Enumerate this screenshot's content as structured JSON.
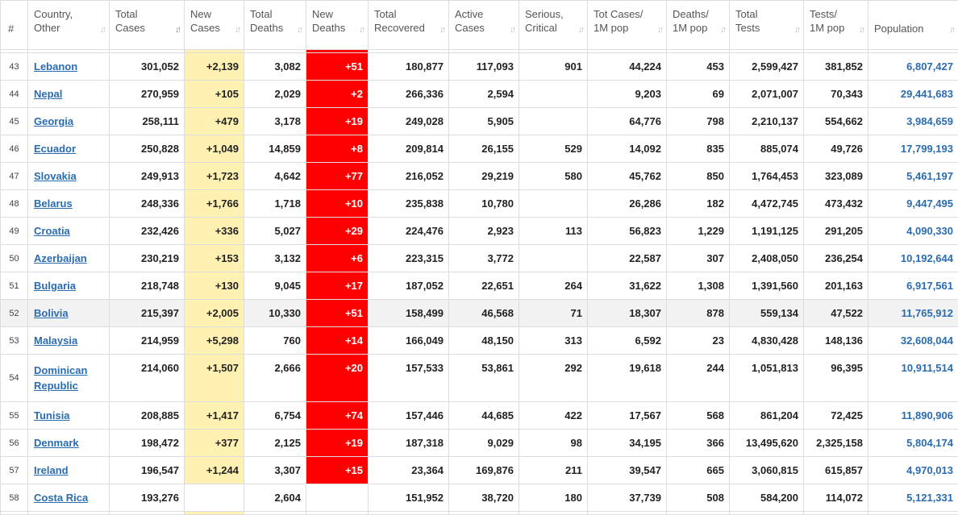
{
  "headers": [
    {
      "line1": "#",
      "line2": ""
    },
    {
      "line1": "Country,",
      "line2": "Other"
    },
    {
      "line1": "Total",
      "line2": "Cases"
    },
    {
      "line1": "New",
      "line2": "Cases"
    },
    {
      "line1": "Total",
      "line2": "Deaths"
    },
    {
      "line1": "New",
      "line2": "Deaths"
    },
    {
      "line1": "Total",
      "line2": "Recovered"
    },
    {
      "line1": "Active",
      "line2": "Cases"
    },
    {
      "line1": "Serious,",
      "line2": "Critical"
    },
    {
      "line1": "Tot Cases/",
      "line2": "1M pop"
    },
    {
      "line1": "Deaths/",
      "line2": "1M pop"
    },
    {
      "line1": "Total",
      "line2": "Tests"
    },
    {
      "line1": "Tests/",
      "line2": "1M pop"
    },
    {
      "line1": "Population",
      "line2": ""
    }
  ],
  "sort_icon": "sort-arrows-icon",
  "active_sort_icon": "sort-desc-icon",
  "colors": {
    "new_cases_bg": "#fff1b2",
    "new_deaths_bg": "#ff0000",
    "link": "#2a6cb0"
  },
  "rows": [
    {
      "rank": "43",
      "country": "Lebanon",
      "country2": "",
      "total_cases": "301,052",
      "new_cases": "+2,139",
      "total_deaths": "3,082",
      "new_deaths": "+51",
      "recovered": "180,877",
      "active": "117,093",
      "serious": "901",
      "cases_per_m": "44,224",
      "deaths_per_m": "453",
      "total_tests": "2,599,427",
      "tests_per_m": "381,852",
      "population": "6,807,427"
    },
    {
      "rank": "44",
      "country": "Nepal",
      "country2": "",
      "total_cases": "270,959",
      "new_cases": "+105",
      "total_deaths": "2,029",
      "new_deaths": "+2",
      "recovered": "266,336",
      "active": "2,594",
      "serious": "",
      "cases_per_m": "9,203",
      "deaths_per_m": "69",
      "total_tests": "2,071,007",
      "tests_per_m": "70,343",
      "population": "29,441,683"
    },
    {
      "rank": "45",
      "country": "Georgia",
      "country2": "",
      "total_cases": "258,111",
      "new_cases": "+479",
      "total_deaths": "3,178",
      "new_deaths": "+19",
      "recovered": "249,028",
      "active": "5,905",
      "serious": "",
      "cases_per_m": "64,776",
      "deaths_per_m": "798",
      "total_tests": "2,210,137",
      "tests_per_m": "554,662",
      "population": "3,984,659"
    },
    {
      "rank": "46",
      "country": "Ecuador",
      "country2": "",
      "total_cases": "250,828",
      "new_cases": "+1,049",
      "total_deaths": "14,859",
      "new_deaths": "+8",
      "recovered": "209,814",
      "active": "26,155",
      "serious": "529",
      "cases_per_m": "14,092",
      "deaths_per_m": "835",
      "total_tests": "885,074",
      "tests_per_m": "49,726",
      "population": "17,799,193"
    },
    {
      "rank": "47",
      "country": "Slovakia",
      "country2": "",
      "total_cases": "249,913",
      "new_cases": "+1,723",
      "total_deaths": "4,642",
      "new_deaths": "+77",
      "recovered": "216,052",
      "active": "29,219",
      "serious": "580",
      "cases_per_m": "45,762",
      "deaths_per_m": "850",
      "total_tests": "1,764,453",
      "tests_per_m": "323,089",
      "population": "5,461,197"
    },
    {
      "rank": "48",
      "country": "Belarus",
      "country2": "",
      "total_cases": "248,336",
      "new_cases": "+1,766",
      "total_deaths": "1,718",
      "new_deaths": "+10",
      "recovered": "235,838",
      "active": "10,780",
      "serious": "",
      "cases_per_m": "26,286",
      "deaths_per_m": "182",
      "total_tests": "4,472,745",
      "tests_per_m": "473,432",
      "population": "9,447,495"
    },
    {
      "rank": "49",
      "country": "Croatia",
      "country2": "",
      "total_cases": "232,426",
      "new_cases": "+336",
      "total_deaths": "5,027",
      "new_deaths": "+29",
      "recovered": "224,476",
      "active": "2,923",
      "serious": "113",
      "cases_per_m": "56,823",
      "deaths_per_m": "1,229",
      "total_tests": "1,191,125",
      "tests_per_m": "291,205",
      "population": "4,090,330"
    },
    {
      "rank": "50",
      "country": "Azerbaijan",
      "country2": "",
      "total_cases": "230,219",
      "new_cases": "+153",
      "total_deaths": "3,132",
      "new_deaths": "+6",
      "recovered": "223,315",
      "active": "3,772",
      "serious": "",
      "cases_per_m": "22,587",
      "deaths_per_m": "307",
      "total_tests": "2,408,050",
      "tests_per_m": "236,254",
      "population": "10,192,644"
    },
    {
      "rank": "51",
      "country": "Bulgaria",
      "country2": "",
      "total_cases": "218,748",
      "new_cases": "+130",
      "total_deaths": "9,045",
      "new_deaths": "+17",
      "recovered": "187,052",
      "active": "22,651",
      "serious": "264",
      "cases_per_m": "31,622",
      "deaths_per_m": "1,308",
      "total_tests": "1,391,560",
      "tests_per_m": "201,163",
      "population": "6,917,561"
    },
    {
      "rank": "52",
      "country": "Bolivia",
      "country2": "",
      "total_cases": "215,397",
      "new_cases": "+2,005",
      "total_deaths": "10,330",
      "new_deaths": "+51",
      "recovered": "158,499",
      "active": "46,568",
      "serious": "71",
      "cases_per_m": "18,307",
      "deaths_per_m": "878",
      "total_tests": "559,134",
      "tests_per_m": "47,522",
      "population": "11,765,912",
      "hover": true
    },
    {
      "rank": "53",
      "country": "Malaysia",
      "country2": "",
      "total_cases": "214,959",
      "new_cases": "+5,298",
      "total_deaths": "760",
      "new_deaths": "+14",
      "recovered": "166,049",
      "active": "48,150",
      "serious": "313",
      "cases_per_m": "6,592",
      "deaths_per_m": "23",
      "total_tests": "4,830,428",
      "tests_per_m": "148,136",
      "population": "32,608,044"
    },
    {
      "rank": "54",
      "country": "Dominican",
      "country2": "Republic",
      "total_cases": "214,060",
      "new_cases": "+1,507",
      "total_deaths": "2,666",
      "new_deaths": "+20",
      "recovered": "157,533",
      "active": "53,861",
      "serious": "292",
      "cases_per_m": "19,618",
      "deaths_per_m": "244",
      "total_tests": "1,051,813",
      "tests_per_m": "96,395",
      "population": "10,911,514"
    },
    {
      "rank": "55",
      "country": "Tunisia",
      "country2": "",
      "total_cases": "208,885",
      "new_cases": "+1,417",
      "total_deaths": "6,754",
      "new_deaths": "+74",
      "recovered": "157,446",
      "active": "44,685",
      "serious": "422",
      "cases_per_m": "17,567",
      "deaths_per_m": "568",
      "total_tests": "861,204",
      "tests_per_m": "72,425",
      "population": "11,890,906"
    },
    {
      "rank": "56",
      "country": "Denmark",
      "country2": "",
      "total_cases": "198,472",
      "new_cases": "+377",
      "total_deaths": "2,125",
      "new_deaths": "+19",
      "recovered": "187,318",
      "active": "9,029",
      "serious": "98",
      "cases_per_m": "34,195",
      "deaths_per_m": "366",
      "total_tests": "13,495,620",
      "tests_per_m": "2,325,158",
      "population": "5,804,174"
    },
    {
      "rank": "57",
      "country": "Ireland",
      "country2": "",
      "total_cases": "196,547",
      "new_cases": "+1,244",
      "total_deaths": "3,307",
      "new_deaths": "+15",
      "recovered": "23,364",
      "active": "169,876",
      "serious": "211",
      "cases_per_m": "39,547",
      "deaths_per_m": "665",
      "total_tests": "3,060,815",
      "tests_per_m": "615,857",
      "population": "4,970,013"
    },
    {
      "rank": "58",
      "country": "Costa Rica",
      "country2": "",
      "total_cases": "193,276",
      "new_cases": "",
      "total_deaths": "2,604",
      "new_deaths": "",
      "recovered": "151,952",
      "active": "38,720",
      "serious": "180",
      "cases_per_m": "37,739",
      "deaths_per_m": "508",
      "total_tests": "584,200",
      "tests_per_m": "114,072",
      "population": "5,121,331"
    }
  ]
}
